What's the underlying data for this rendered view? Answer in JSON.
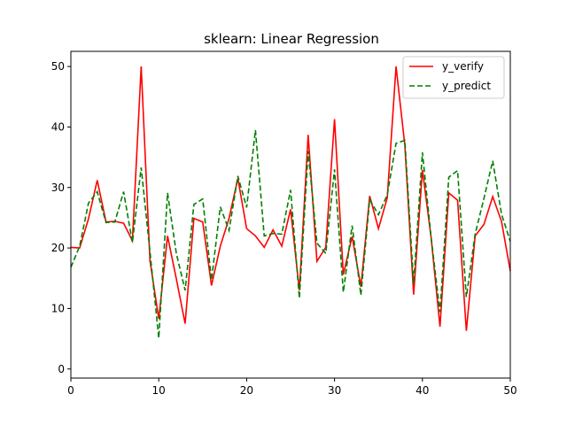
{
  "chart_data": {
    "type": "line",
    "title": "sklearn: Linear Regression",
    "xlabel": "",
    "ylabel": "",
    "xlim": [
      0,
      50
    ],
    "ylim": [
      -1.5,
      52.5
    ],
    "xticks": [
      0,
      10,
      20,
      30,
      40,
      50
    ],
    "yticks": [
      0,
      10,
      20,
      30,
      40,
      50
    ],
    "grid": false,
    "legend_position": "top-right",
    "series": [
      {
        "name": "y_verify",
        "color": "#ff0000",
        "linestyle": "solid",
        "x": [
          0,
          1,
          2,
          3,
          4,
          5,
          6,
          7,
          8,
          9,
          10,
          11,
          12,
          13,
          14,
          15,
          16,
          17,
          18,
          19,
          20,
          21,
          22,
          23,
          24,
          25,
          26,
          27,
          28,
          29,
          30,
          31,
          32,
          33,
          34,
          35,
          36,
          37,
          38,
          39,
          40,
          41,
          42,
          43,
          44,
          45,
          46,
          47,
          48,
          49,
          50
        ],
        "y": [
          20.1,
          20.0,
          24.8,
          31.2,
          24.3,
          24.4,
          24.1,
          21.2,
          50.0,
          17.9,
          8.3,
          22.0,
          14.9,
          7.5,
          24.9,
          24.3,
          13.8,
          20.3,
          24.9,
          31.5,
          23.2,
          22.0,
          20.1,
          23.0,
          20.3,
          26.4,
          13.0,
          38.7,
          17.8,
          20.1,
          41.3,
          15.6,
          21.9,
          13.6,
          28.6,
          23.2,
          28.3,
          50.0,
          37.0,
          12.3,
          32.9,
          21.6,
          7.0,
          29.1,
          27.9,
          6.3,
          22.0,
          23.9,
          28.5,
          24.4,
          16.2
        ]
      },
      {
        "name": "y_predict",
        "color": "#008000",
        "linestyle": "dashed",
        "x": [
          0,
          1,
          2,
          3,
          4,
          5,
          6,
          7,
          8,
          9,
          10,
          11,
          12,
          13,
          14,
          15,
          16,
          17,
          18,
          19,
          20,
          21,
          22,
          23,
          24,
          25,
          26,
          27,
          28,
          29,
          30,
          31,
          32,
          33,
          34,
          35,
          36,
          37,
          38,
          39,
          40,
          41,
          42,
          43,
          44,
          45,
          46,
          47,
          48,
          49,
          50
        ],
        "y": [
          16.8,
          20.3,
          27.4,
          29.3,
          24.2,
          24.3,
          29.3,
          20.9,
          33.3,
          19.4,
          5.1,
          29.1,
          19.1,
          13.0,
          27.2,
          28.1,
          14.7,
          26.8,
          22.9,
          31.9,
          26.7,
          39.5,
          22.0,
          22.4,
          22.3,
          29.6,
          11.7,
          36.0,
          20.8,
          19.1,
          33.0,
          12.7,
          23.7,
          12.2,
          28.0,
          25.5,
          28.8,
          37.3,
          37.8,
          14.1,
          35.8,
          21.6,
          9.4,
          31.7,
          32.8,
          11.9,
          22.3,
          28.2,
          34.4,
          25.6,
          21.1
        ]
      }
    ]
  }
}
